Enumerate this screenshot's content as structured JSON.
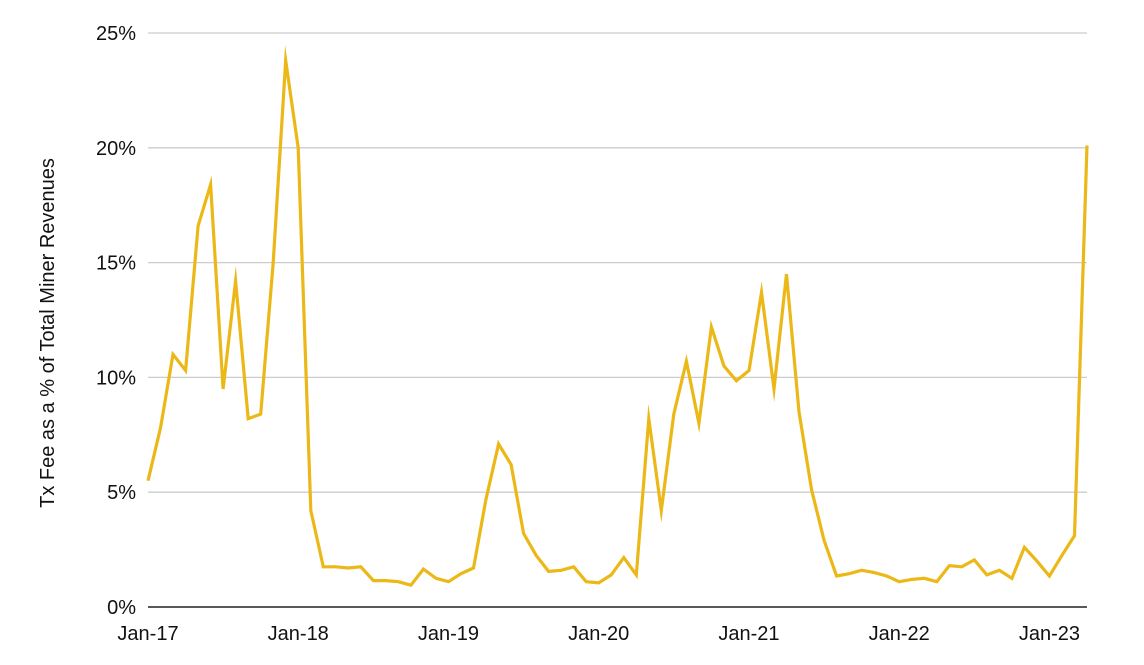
{
  "chart_data": {
    "type": "line",
    "title": "",
    "xlabel": "",
    "ylabel": "Tx Fee as a % of Total Miner Revenues",
    "ylim": [
      0,
      25
    ],
    "yticks": [
      0,
      5,
      10,
      15,
      20,
      25
    ],
    "ytick_labels": [
      "0%",
      "5%",
      "10%",
      "15%",
      "20%",
      "25%"
    ],
    "xlim": [
      "2017-01",
      "2023-04"
    ],
    "xticks": [
      "2017-01",
      "2018-01",
      "2019-01",
      "2020-01",
      "2021-01",
      "2022-01",
      "2023-01"
    ],
    "xtick_labels": [
      "Jan-17",
      "Jan-18",
      "Jan-19",
      "Jan-20",
      "Jan-21",
      "Jan-22",
      "Jan-23"
    ],
    "grid": "horizontal",
    "colors": {
      "line": "#EBB817",
      "grid": "#CCCCCC",
      "axis": "#222222"
    },
    "series": [
      {
        "x": [
          "2017-01",
          "2017-02",
          "2017-03",
          "2017-04",
          "2017-05",
          "2017-06",
          "2017-07",
          "2017-08",
          "2017-09",
          "2017-10",
          "2017-11",
          "2017-12",
          "2018-01",
          "2018-02",
          "2018-03",
          "2018-04",
          "2018-05",
          "2018-06",
          "2018-07",
          "2018-08",
          "2018-09",
          "2018-10",
          "2018-11",
          "2018-12",
          "2019-01",
          "2019-02",
          "2019-03",
          "2019-04",
          "2019-05",
          "2019-06",
          "2019-07",
          "2019-08",
          "2019-09",
          "2019-10",
          "2019-11",
          "2019-12",
          "2020-01",
          "2020-02",
          "2020-03",
          "2020-04",
          "2020-05",
          "2020-06",
          "2020-07",
          "2020-08",
          "2020-09",
          "2020-10",
          "2020-11",
          "2020-12",
          "2021-01",
          "2021-02",
          "2021-03",
          "2021-04",
          "2021-05",
          "2021-06",
          "2021-07",
          "2021-08",
          "2021-09",
          "2021-10",
          "2021-11",
          "2021-12",
          "2022-01",
          "2022-02",
          "2022-03",
          "2022-04",
          "2022-05",
          "2022-06",
          "2022-07",
          "2022-08",
          "2022-09",
          "2022-10",
          "2022-11",
          "2022-12",
          "2023-01",
          "2023-02",
          "2023-03",
          "2023-04"
        ],
        "values": [
          5.5,
          7.8,
          11.0,
          10.3,
          16.6,
          18.4,
          9.5,
          14.2,
          8.2,
          8.4,
          15.0,
          23.8,
          20.0,
          4.2,
          1.75,
          1.75,
          1.7,
          1.75,
          1.15,
          1.15,
          1.1,
          0.95,
          1.65,
          1.25,
          1.1,
          1.45,
          1.7,
          4.7,
          7.1,
          6.2,
          3.2,
          2.25,
          1.55,
          1.6,
          1.75,
          1.1,
          1.05,
          1.4,
          2.15,
          1.4,
          8.2,
          4.2,
          8.4,
          10.7,
          8.0,
          12.2,
          10.5,
          9.85,
          10.3,
          13.7,
          9.5,
          14.5,
          8.5,
          5.1,
          2.9,
          1.35,
          1.45,
          1.6,
          1.5,
          1.35,
          1.1,
          1.2,
          1.25,
          1.1,
          1.8,
          1.75,
          2.05,
          1.4,
          1.6,
          1.25,
          2.6,
          2.0,
          1.35,
          2.25,
          3.1,
          20.1
        ]
      }
    ]
  }
}
